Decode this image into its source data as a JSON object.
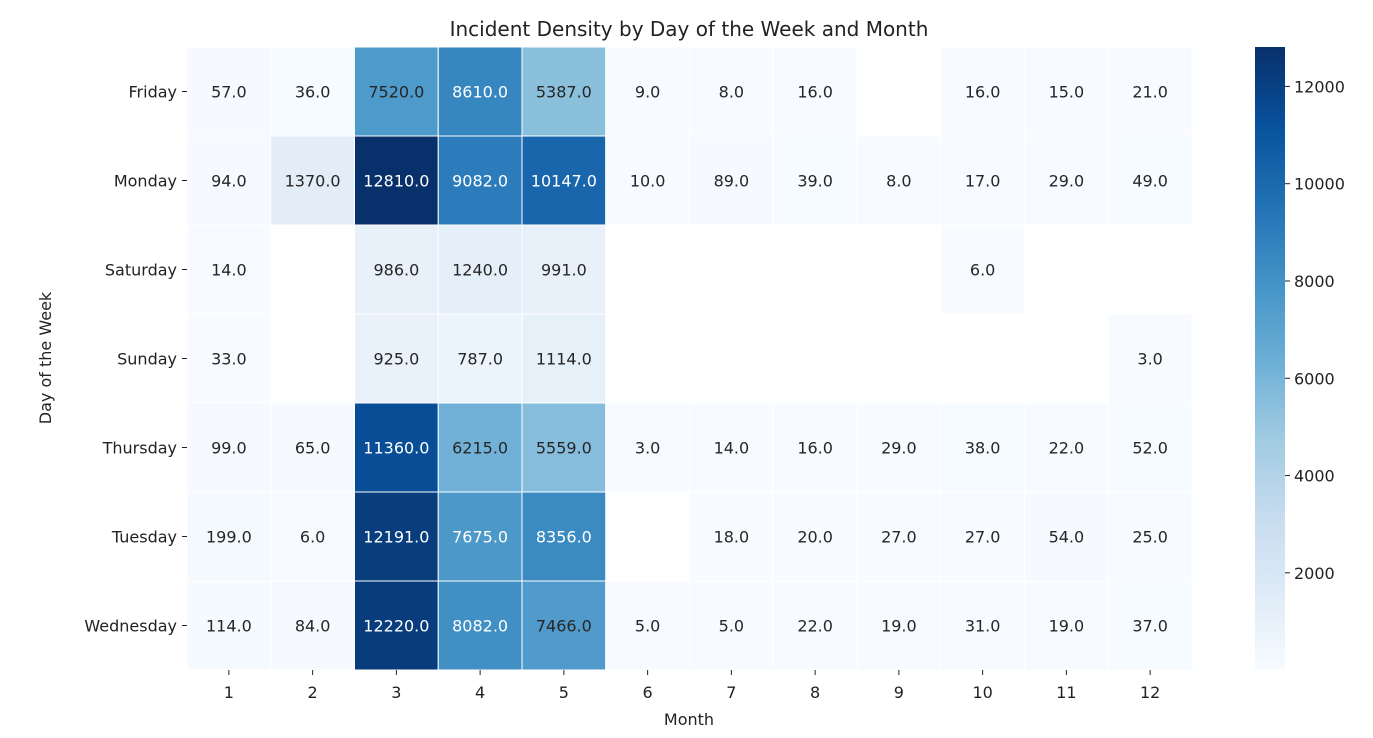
{
  "chart_data": {
    "type": "heatmap",
    "title": "Incident Density by Day of the Week and Month",
    "xlabel": "Month",
    "ylabel": "Day of the Week",
    "x_categories": [
      "1",
      "2",
      "3",
      "4",
      "5",
      "6",
      "7",
      "8",
      "9",
      "10",
      "11",
      "12"
    ],
    "y_categories": [
      "Friday",
      "Monday",
      "Saturday",
      "Sunday",
      "Thursday",
      "Tuesday",
      "Wednesday"
    ],
    "values": [
      [
        57,
        36,
        7520,
        8610,
        5387,
        9,
        8,
        16,
        null,
        16,
        15,
        21
      ],
      [
        94,
        1370,
        12810,
        9082,
        10147,
        10,
        89,
        39,
        8,
        17,
        29,
        49
      ],
      [
        14,
        null,
        986,
        1240,
        991,
        null,
        null,
        null,
        null,
        6,
        null,
        null
      ],
      [
        33,
        null,
        925,
        787,
        1114,
        null,
        null,
        null,
        null,
        null,
        null,
        3
      ],
      [
        99,
        65,
        11360,
        6215,
        5559,
        3,
        14,
        16,
        29,
        38,
        22,
        52
      ],
      [
        199,
        6,
        12191,
        7675,
        8356,
        null,
        18,
        20,
        27,
        27,
        54,
        25
      ],
      [
        114,
        84,
        12220,
        8082,
        7466,
        5,
        5,
        22,
        19,
        31,
        19,
        37
      ]
    ],
    "value_format": "one-decimal",
    "colormap": "Blues",
    "color_range": [
      3,
      12810
    ],
    "colorbar_ticks": [
      "2000",
      "4000",
      "6000",
      "8000",
      "10000",
      "12000"
    ],
    "grid": false,
    "cell_borders": true
  }
}
